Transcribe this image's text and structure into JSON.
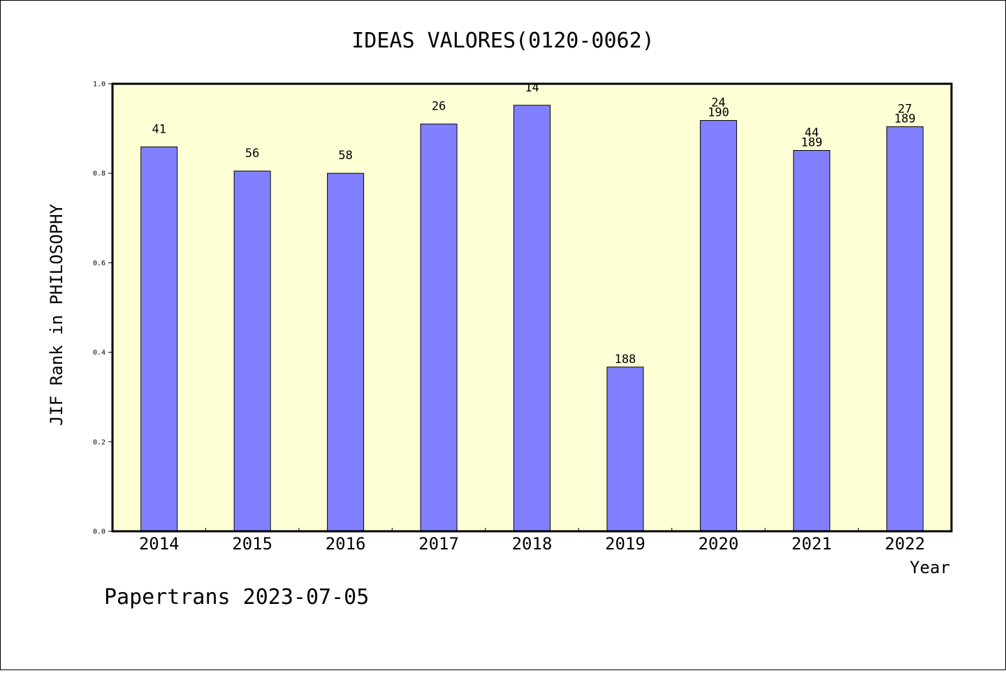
{
  "chart_data": {
    "type": "bar",
    "title": "IDEAS VALORES(0120-0062)",
    "xlabel": "Year",
    "ylabel": "JIF Rank in PHILOSOPHY",
    "ylim": [
      0,
      1.0
    ],
    "yticks": [
      "0.0",
      "0.2",
      "0.4",
      "0.6",
      "0.8",
      "1.0"
    ],
    "categories": [
      "2014",
      "2015",
      "2016",
      "2017",
      "2018",
      "2019",
      "2020",
      "2021",
      "2022"
    ],
    "values": [
      0.859,
      0.805,
      0.8,
      0.91,
      0.952,
      0.367,
      0.918,
      0.851,
      0.904
    ],
    "labels_top": [
      "41",
      "56",
      "58",
      "26",
      "14",
      "",
      "24",
      "44",
      "27"
    ],
    "labels_bottom": [
      "",
      "",
      "",
      "",
      "",
      "188",
      "190",
      "189",
      "189"
    ],
    "grid": false,
    "colors": {
      "bar_fill": "#8080ff",
      "plot_background": "#ffffd6",
      "axis": "#000000"
    }
  },
  "footer": "Papertrans 2023-07-05"
}
